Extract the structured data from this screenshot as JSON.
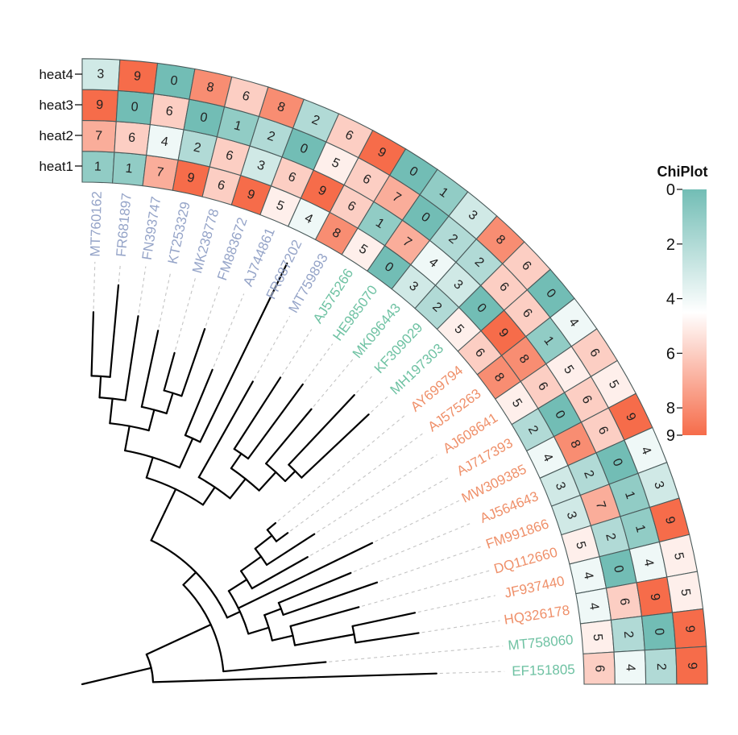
{
  "chart_data": {
    "type": "heatmap",
    "subtype": "fan-phylogenetic-tree-with-circular-heatmap",
    "title": "",
    "rows": [
      "heat1",
      "heat2",
      "heat3",
      "heat4"
    ],
    "leaves": [
      {
        "name": "MT760162",
        "group": "blue"
      },
      {
        "name": "FR681897",
        "group": "blue"
      },
      {
        "name": "FN393747",
        "group": "blue"
      },
      {
        "name": "KT253329",
        "group": "blue"
      },
      {
        "name": "MK238778",
        "group": "blue"
      },
      {
        "name": "FM883672",
        "group": "blue"
      },
      {
        "name": "AJ744861",
        "group": "blue"
      },
      {
        "name": "FR687202",
        "group": "blue"
      },
      {
        "name": "MT759893",
        "group": "blue"
      },
      {
        "name": "AJ575266",
        "group": "green"
      },
      {
        "name": "HE985070",
        "group": "green"
      },
      {
        "name": "MK096443",
        "group": "green"
      },
      {
        "name": "KF309029",
        "group": "green"
      },
      {
        "name": "MH197303",
        "group": "green"
      },
      {
        "name": "AY699794",
        "group": "orange"
      },
      {
        "name": "AJ575263",
        "group": "orange"
      },
      {
        "name": "AJ608641",
        "group": "orange"
      },
      {
        "name": "AJ717393",
        "group": "orange"
      },
      {
        "name": "MW309385",
        "group": "orange"
      },
      {
        "name": "AJ564643",
        "group": "orange"
      },
      {
        "name": "FM991866",
        "group": "orange"
      },
      {
        "name": "DQ112660",
        "group": "orange"
      },
      {
        "name": "JF937440",
        "group": "orange"
      },
      {
        "name": "HQ326178",
        "group": "orange"
      },
      {
        "name": "MT758060",
        "group": "green"
      },
      {
        "name": "EF151805",
        "group": "green"
      }
    ],
    "values": {
      "heat1": [
        1,
        1,
        7,
        9,
        6,
        9,
        5,
        4,
        8,
        5,
        0,
        3,
        2,
        5,
        6,
        8,
        5,
        2,
        4,
        3,
        3,
        5,
        4,
        4,
        5,
        6
      ],
      "heat2": [
        7,
        6,
        4,
        2,
        6,
        3,
        6,
        9,
        6,
        1,
        7,
        4,
        3,
        0,
        9,
        8,
        6,
        0,
        8,
        2,
        7,
        2,
        0,
        6,
        2,
        4
      ],
      "heat3": [
        9,
        0,
        6,
        0,
        1,
        2,
        0,
        5,
        6,
        7,
        0,
        2,
        2,
        6,
        6,
        1,
        5,
        6,
        6,
        0,
        1,
        1,
        4,
        9,
        0,
        2
      ],
      "heat4": [
        3,
        9,
        0,
        8,
        6,
        8,
        2,
        6,
        9,
        0,
        1,
        3,
        8,
        6,
        0,
        4,
        6,
        5,
        9,
        4,
        3,
        9,
        5,
        5,
        9,
        9
      ]
    },
    "colorbar": {
      "title": "ChiPlot",
      "range": [
        0,
        9
      ],
      "ticks": [
        "0",
        "2",
        "4",
        "6",
        "8",
        "9"
      ],
      "tick_values": [
        0,
        2,
        4,
        6,
        8,
        9
      ],
      "colors": {
        "low": "#72bdb5",
        "mid": "#ffffff",
        "high": "#f66c4a"
      },
      "mid_value": 4.5
    },
    "group_colors": {
      "blue": "#95a4c8",
      "green": "#6fc2a3",
      "orange": "#ef906a"
    },
    "tree": {
      "bl": 1.0,
      "children": [
        {
          "leaf": 25,
          "bl": 4.0
        },
        {
          "bl": 1.0,
          "children": [
            {
              "leaf": 24,
              "bl": 1.45
            },
            {
              "bl": 0.25,
              "children": [
                {
                  "bl": 0.2,
                  "children": [
                    {
                      "bl": 0.3,
                      "children": [
                        {
                          "bl": 0.35,
                          "children": [
                            {
                              "bl": 0.3,
                              "children": [
                                {
                                  "leaf": 14,
                                  "bl": 0.15
                                },
                                {
                                  "leaf": 15,
                                  "bl": 0.2
                                }
                              ]
                            },
                            {
                              "leaf": 16,
                              "bl": 0.8
                            }
                          ]
                        },
                        {
                          "leaf": 17,
                          "bl": 0.9
                        }
                      ]
                    },
                    {
                      "leaf": 18,
                      "bl": 2.1
                    },
                    {
                      "bl": 0.3,
                      "children": [
                        {
                          "bl": 0.25,
                          "children": [
                            {
                              "leaf": 19,
                              "bl": 1.1
                            },
                            {
                              "leaf": 20,
                              "bl": 1.4
                            }
                          ]
                        },
                        {
                          "bl": 0.3,
                          "children": [
                            {
                              "leaf": 21,
                              "bl": 1.0
                            },
                            {
                              "bl": 0.85,
                              "children": [
                                {
                                  "leaf": 22,
                                  "bl": 0.9
                                },
                                {
                                  "leaf": 23,
                                  "bl": 0.9
                                }
                              ]
                            }
                          ]
                        }
                      ]
                    }
                  ]
                },
                {
                  "bl": 0.45,
                  "children": [
                    {
                      "bl": 0.35,
                      "children": [
                        {
                          "bl": 0.3,
                          "children": [
                            {
                              "bl": 0.35,
                              "children": [
                                {
                                  "bl": 0.35,
                                  "children": [
                                    {
                                      "bl": 0.3,
                                      "children": [
                                        {
                                          "leaf": 0,
                                          "bl": 0.9
                                        },
                                        {
                                          "leaf": 1,
                                          "bl": 1.3
                                        }
                                      ]
                                    },
                                    {
                                      "leaf": 2,
                                      "bl": 1.2
                                    }
                                  ]
                                },
                                {
                                  "bl": 0.3,
                                  "children": [
                                    {
                                      "leaf": 3,
                                      "bl": 1.1
                                    },
                                    {
                                      "bl": 0.3,
                                      "children": [
                                        {
                                          "leaf": 4,
                                          "bl": 0.55
                                        },
                                        {
                                          "leaf": 5,
                                          "bl": 1.0
                                        }
                                      ]
                                    }
                                  ]
                                }
                              ]
                            },
                            {
                              "bl": 0.45,
                              "children": [
                                {
                                  "leaf": 6,
                                  "bl": 1.0
                                },
                                {
                                  "leaf": 7,
                                  "bl": 2.8
                                }
                              ]
                            }
                          ]
                        },
                        {
                          "bl": 0.3,
                          "children": [
                            {
                              "leaf": 8,
                              "bl": 1.55
                            },
                            {
                              "bl": 0.35,
                              "children": [
                                {
                                  "bl": 0.25,
                                  "children": [
                                    {
                                      "leaf": 9,
                                      "bl": 1.2
                                    },
                                    {
                                      "leaf": 10,
                                      "bl": 1.3
                                    }
                                  ]
                                },
                                {
                                  "bl": 0.35,
                                  "children": [
                                    {
                                      "leaf": 11,
                                      "bl": 1.0
                                    },
                                    {
                                      "bl": 0.2,
                                      "children": [
                                        {
                                          "leaf": 12,
                                          "bl": 1.35
                                        },
                                        {
                                          "leaf": 13,
                                          "bl": 1.3
                                        }
                                      ]
                                    }
                                  ]
                                }
                              ]
                            }
                          ]
                        }
                      ]
                    }
                  ]
                }
              ]
            }
          ]
        }
      ]
    }
  }
}
